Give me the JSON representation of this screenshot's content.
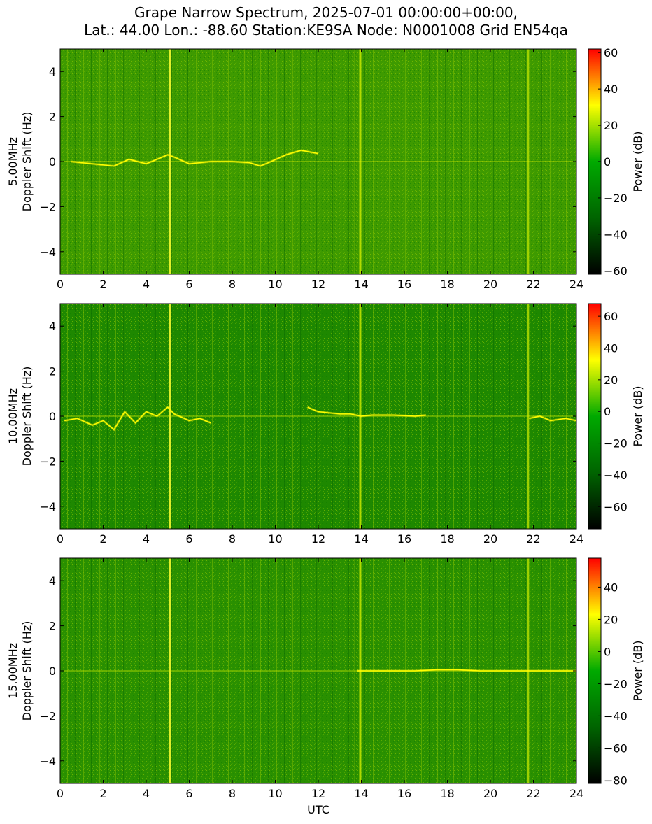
{
  "title_line1": "Grape Narrow Spectrum, 2025-07-01 00:00:00+00:00,",
  "title_line2": "Lat.: 44.00 Lon.: -88.60 Station:KE9SA Node: N0001008 Grid EN54qa",
  "xlabel": "UTC",
  "colors": {
    "stops": [
      "#000000",
      "#006400",
      "#00aa00",
      "#ffff00",
      "#ff0000"
    ]
  },
  "chart_data": [
    {
      "type": "heatmap",
      "ylabel_line1": "5.00MHz",
      "ylabel_line2": "Doppler Shift (Hz)",
      "xlim": [
        0,
        24
      ],
      "ylim": [
        -5,
        5
      ],
      "x_ticks": [
        "0",
        "2",
        "4",
        "6",
        "8",
        "10",
        "12",
        "14",
        "16",
        "18",
        "20",
        "22",
        "24"
      ],
      "y_ticks": [
        "4",
        "2",
        "0",
        "−2",
        "−4"
      ],
      "y_tick_values": [
        4,
        2,
        0,
        -2,
        -4
      ],
      "colorbar": {
        "label": "Power (dB)",
        "vmin": -62,
        "vmax": 62,
        "ticks": [
          "60",
          "40",
          "20",
          "0",
          "−20",
          "−40",
          "−60"
        ],
        "tick_values": [
          60,
          40,
          20,
          0,
          -20,
          -40,
          -60
        ]
      },
      "traces": [
        {
          "x": [
            0.5,
            1.5,
            2.5,
            3.2,
            4.0,
            4.5,
            5.0,
            5.3,
            6.0,
            7.0,
            8.0,
            8.8,
            9.3,
            9.8,
            10.5,
            11.2,
            12.0
          ],
          "y": [
            0,
            -0.1,
            -0.2,
            0.1,
            -0.1,
            0.1,
            0.3,
            0.2,
            -0.1,
            0.0,
            0.0,
            -0.05,
            -0.2,
            0.0,
            0.3,
            0.5,
            0.35
          ]
        }
      ]
    },
    {
      "type": "heatmap",
      "ylabel_line1": "10.00MHz",
      "ylabel_line2": "Doppler Shift (Hz)",
      "xlim": [
        0,
        24
      ],
      "ylim": [
        -5,
        5
      ],
      "x_ticks": [
        "0",
        "2",
        "4",
        "6",
        "8",
        "10",
        "12",
        "14",
        "16",
        "18",
        "20",
        "22",
        "24"
      ],
      "y_ticks": [
        "4",
        "2",
        "0",
        "−2",
        "−4"
      ],
      "y_tick_values": [
        4,
        2,
        0,
        -2,
        -4
      ],
      "colorbar": {
        "label": "Power (dB)",
        "vmin": -74,
        "vmax": 68,
        "ticks": [
          "60",
          "40",
          "20",
          "0",
          "−20",
          "−40",
          "−60"
        ],
        "tick_values": [
          60,
          40,
          20,
          0,
          -20,
          -40,
          -60
        ]
      },
      "traces": [
        {
          "x": [
            0.2,
            0.8,
            1.5,
            2.0,
            2.5,
            3.0,
            3.5,
            4.0,
            4.5,
            5.0,
            5.3,
            6.0,
            6.5,
            7.0
          ],
          "y": [
            -0.2,
            -0.1,
            -0.4,
            -0.2,
            -0.6,
            0.2,
            -0.3,
            0.2,
            0.0,
            0.4,
            0.1,
            -0.2,
            -0.1,
            -0.3
          ]
        },
        {
          "x": [
            11.5,
            12.0,
            12.5,
            13.0,
            13.5,
            14.0,
            14.5,
            15.5,
            16.5,
            17.0
          ],
          "y": [
            0.4,
            0.2,
            0.15,
            0.1,
            0.1,
            0.0,
            0.05,
            0.05,
            0.0,
            0.05
          ]
        },
        {
          "x": [
            21.8,
            22.3,
            22.8,
            23.5,
            24.0
          ],
          "y": [
            -0.1,
            0.0,
            -0.2,
            -0.1,
            -0.2
          ]
        }
      ]
    },
    {
      "type": "heatmap",
      "ylabel_line1": "15.00MHz",
      "ylabel_line2": "Doppler Shift (Hz)",
      "xlim": [
        0,
        24
      ],
      "ylim": [
        -5,
        5
      ],
      "x_ticks": [
        "0",
        "2",
        "4",
        "6",
        "8",
        "10",
        "12",
        "14",
        "16",
        "18",
        "20",
        "22",
        "24"
      ],
      "y_ticks": [
        "4",
        "2",
        "0",
        "−2",
        "−4"
      ],
      "y_tick_values": [
        4,
        2,
        0,
        -2,
        -4
      ],
      "colorbar": {
        "label": "Power (dB)",
        "vmin": -82,
        "vmax": 58,
        "ticks": [
          "40",
          "20",
          "0",
          "−20",
          "−40",
          "−60",
          "−80"
        ],
        "tick_values": [
          40,
          20,
          0,
          -20,
          -40,
          -60,
          -80
        ]
      },
      "traces": [
        {
          "x": [
            13.8,
            15.0,
            16.5,
            17.5,
            18.5,
            19.5,
            20.5,
            21.8,
            22.8,
            24.0
          ],
          "y": [
            0,
            0,
            0,
            0.05,
            0.05,
            0,
            0,
            0,
            0,
            0
          ]
        }
      ]
    }
  ]
}
